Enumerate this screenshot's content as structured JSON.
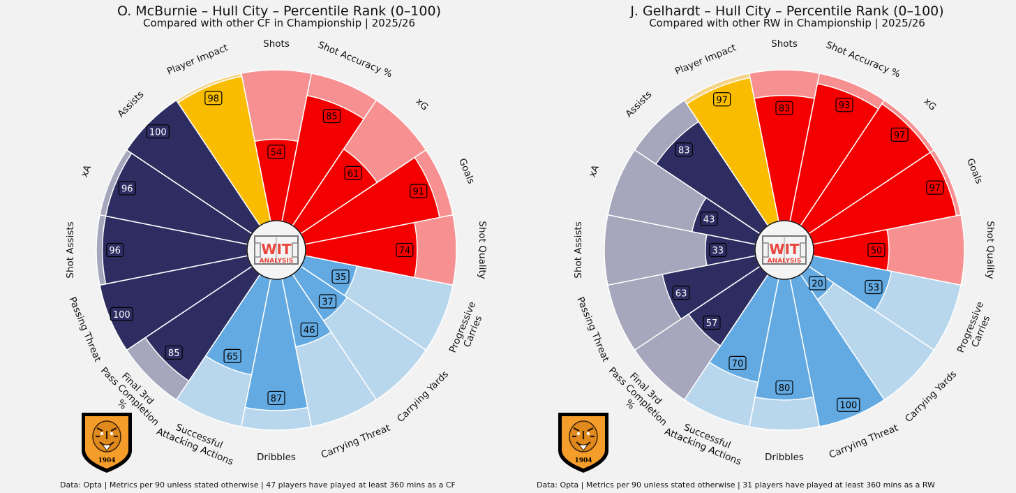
{
  "colors": {
    "attack_dark": "#f50000",
    "attack_light": "#f79191",
    "impact_dark": "#f9bc00",
    "impact_light": "#f4d488",
    "carry_dark": "#63aae2",
    "carry_light": "#b8d6ec",
    "pass_dark": "#2e2d62",
    "pass_light": "#a6a6bc",
    "background": "#f2f2f2",
    "badge_orange": "#f59d2a"
  },
  "badge_text": "1904",
  "logo": {
    "line1": "WIT",
    "line2": "ANALYSIS"
  },
  "chart_data": [
    {
      "type": "radial-bar",
      "title": "O. McBurnie – Hull City – Percentile Rank (0–100)",
      "subtitle": "Compared with other CF in Championship | 2025/26",
      "footer": "Data: Opta | Metrics per 90 unless stated otherwise | 47 players have played at least 360 mins as a CF",
      "rlim": [
        0,
        100
      ],
      "metrics": [
        {
          "label": "Shots",
          "value": 54,
          "group": "attack"
        },
        {
          "label": "Shot Accuracy %",
          "value": 85,
          "group": "attack"
        },
        {
          "label": "xG",
          "value": 61,
          "group": "attack"
        },
        {
          "label": "Goals",
          "value": 91,
          "group": "attack"
        },
        {
          "label": "Shot Quality",
          "value": 74,
          "group": "attack"
        },
        {
          "label": "Progressive\nCarries",
          "value": 35,
          "group": "carry"
        },
        {
          "label": "Carrying Yards",
          "value": 37,
          "group": "carry"
        },
        {
          "label": "Carrying Threat",
          "value": 46,
          "group": "carry"
        },
        {
          "label": "Dribbles",
          "value": 87,
          "group": "carry"
        },
        {
          "label": "Successful\nAttacking Actions",
          "value": 65,
          "group": "carry"
        },
        {
          "label": "Final 3rd\nPass Completion\n%",
          "value": 85,
          "group": "pass"
        },
        {
          "label": "Passing Threat",
          "value": 100,
          "group": "pass"
        },
        {
          "label": "Shot Assists",
          "value": 96,
          "group": "pass"
        },
        {
          "label": "xA",
          "value": 96,
          "group": "pass"
        },
        {
          "label": "Assists",
          "value": 100,
          "group": "pass"
        },
        {
          "label": "Player Impact",
          "value": 98,
          "group": "impact"
        }
      ]
    },
    {
      "type": "radial-bar",
      "title": "J. Gelhardt – Hull City – Percentile Rank (0–100)",
      "subtitle": "Compared with other RW in Championship | 2025/26",
      "footer": "Data: Opta | Metrics per 90 unless stated otherwise | 31 players have played at least 360 mins as a RW",
      "rlim": [
        0,
        100
      ],
      "metrics": [
        {
          "label": "Shots",
          "value": 83,
          "group": "attack"
        },
        {
          "label": "Shot Accuracy %",
          "value": 93,
          "group": "attack"
        },
        {
          "label": "xG",
          "value": 97,
          "group": "attack"
        },
        {
          "label": "Goals",
          "value": 97,
          "group": "attack"
        },
        {
          "label": "Shot Quality",
          "value": 50,
          "group": "attack"
        },
        {
          "label": "Progressive\nCarries",
          "value": 53,
          "group": "carry"
        },
        {
          "label": "Carrying Yards",
          "value": 20,
          "group": "carry"
        },
        {
          "label": "Carrying Threat",
          "value": 100,
          "group": "carry"
        },
        {
          "label": "Dribbles",
          "value": 80,
          "group": "carry"
        },
        {
          "label": "Successful\nAttacking Actions",
          "value": 70,
          "group": "carry"
        },
        {
          "label": "Final 3rd\nPass Completion\n%",
          "value": 57,
          "group": "pass"
        },
        {
          "label": "Passing Threat",
          "value": 63,
          "group": "pass"
        },
        {
          "label": "Shot Assists",
          "value": 33,
          "group": "pass"
        },
        {
          "label": "xA",
          "value": 43,
          "group": "pass"
        },
        {
          "label": "Assists",
          "value": 83,
          "group": "pass"
        },
        {
          "label": "Player Impact",
          "value": 97,
          "group": "impact"
        }
      ]
    }
  ]
}
